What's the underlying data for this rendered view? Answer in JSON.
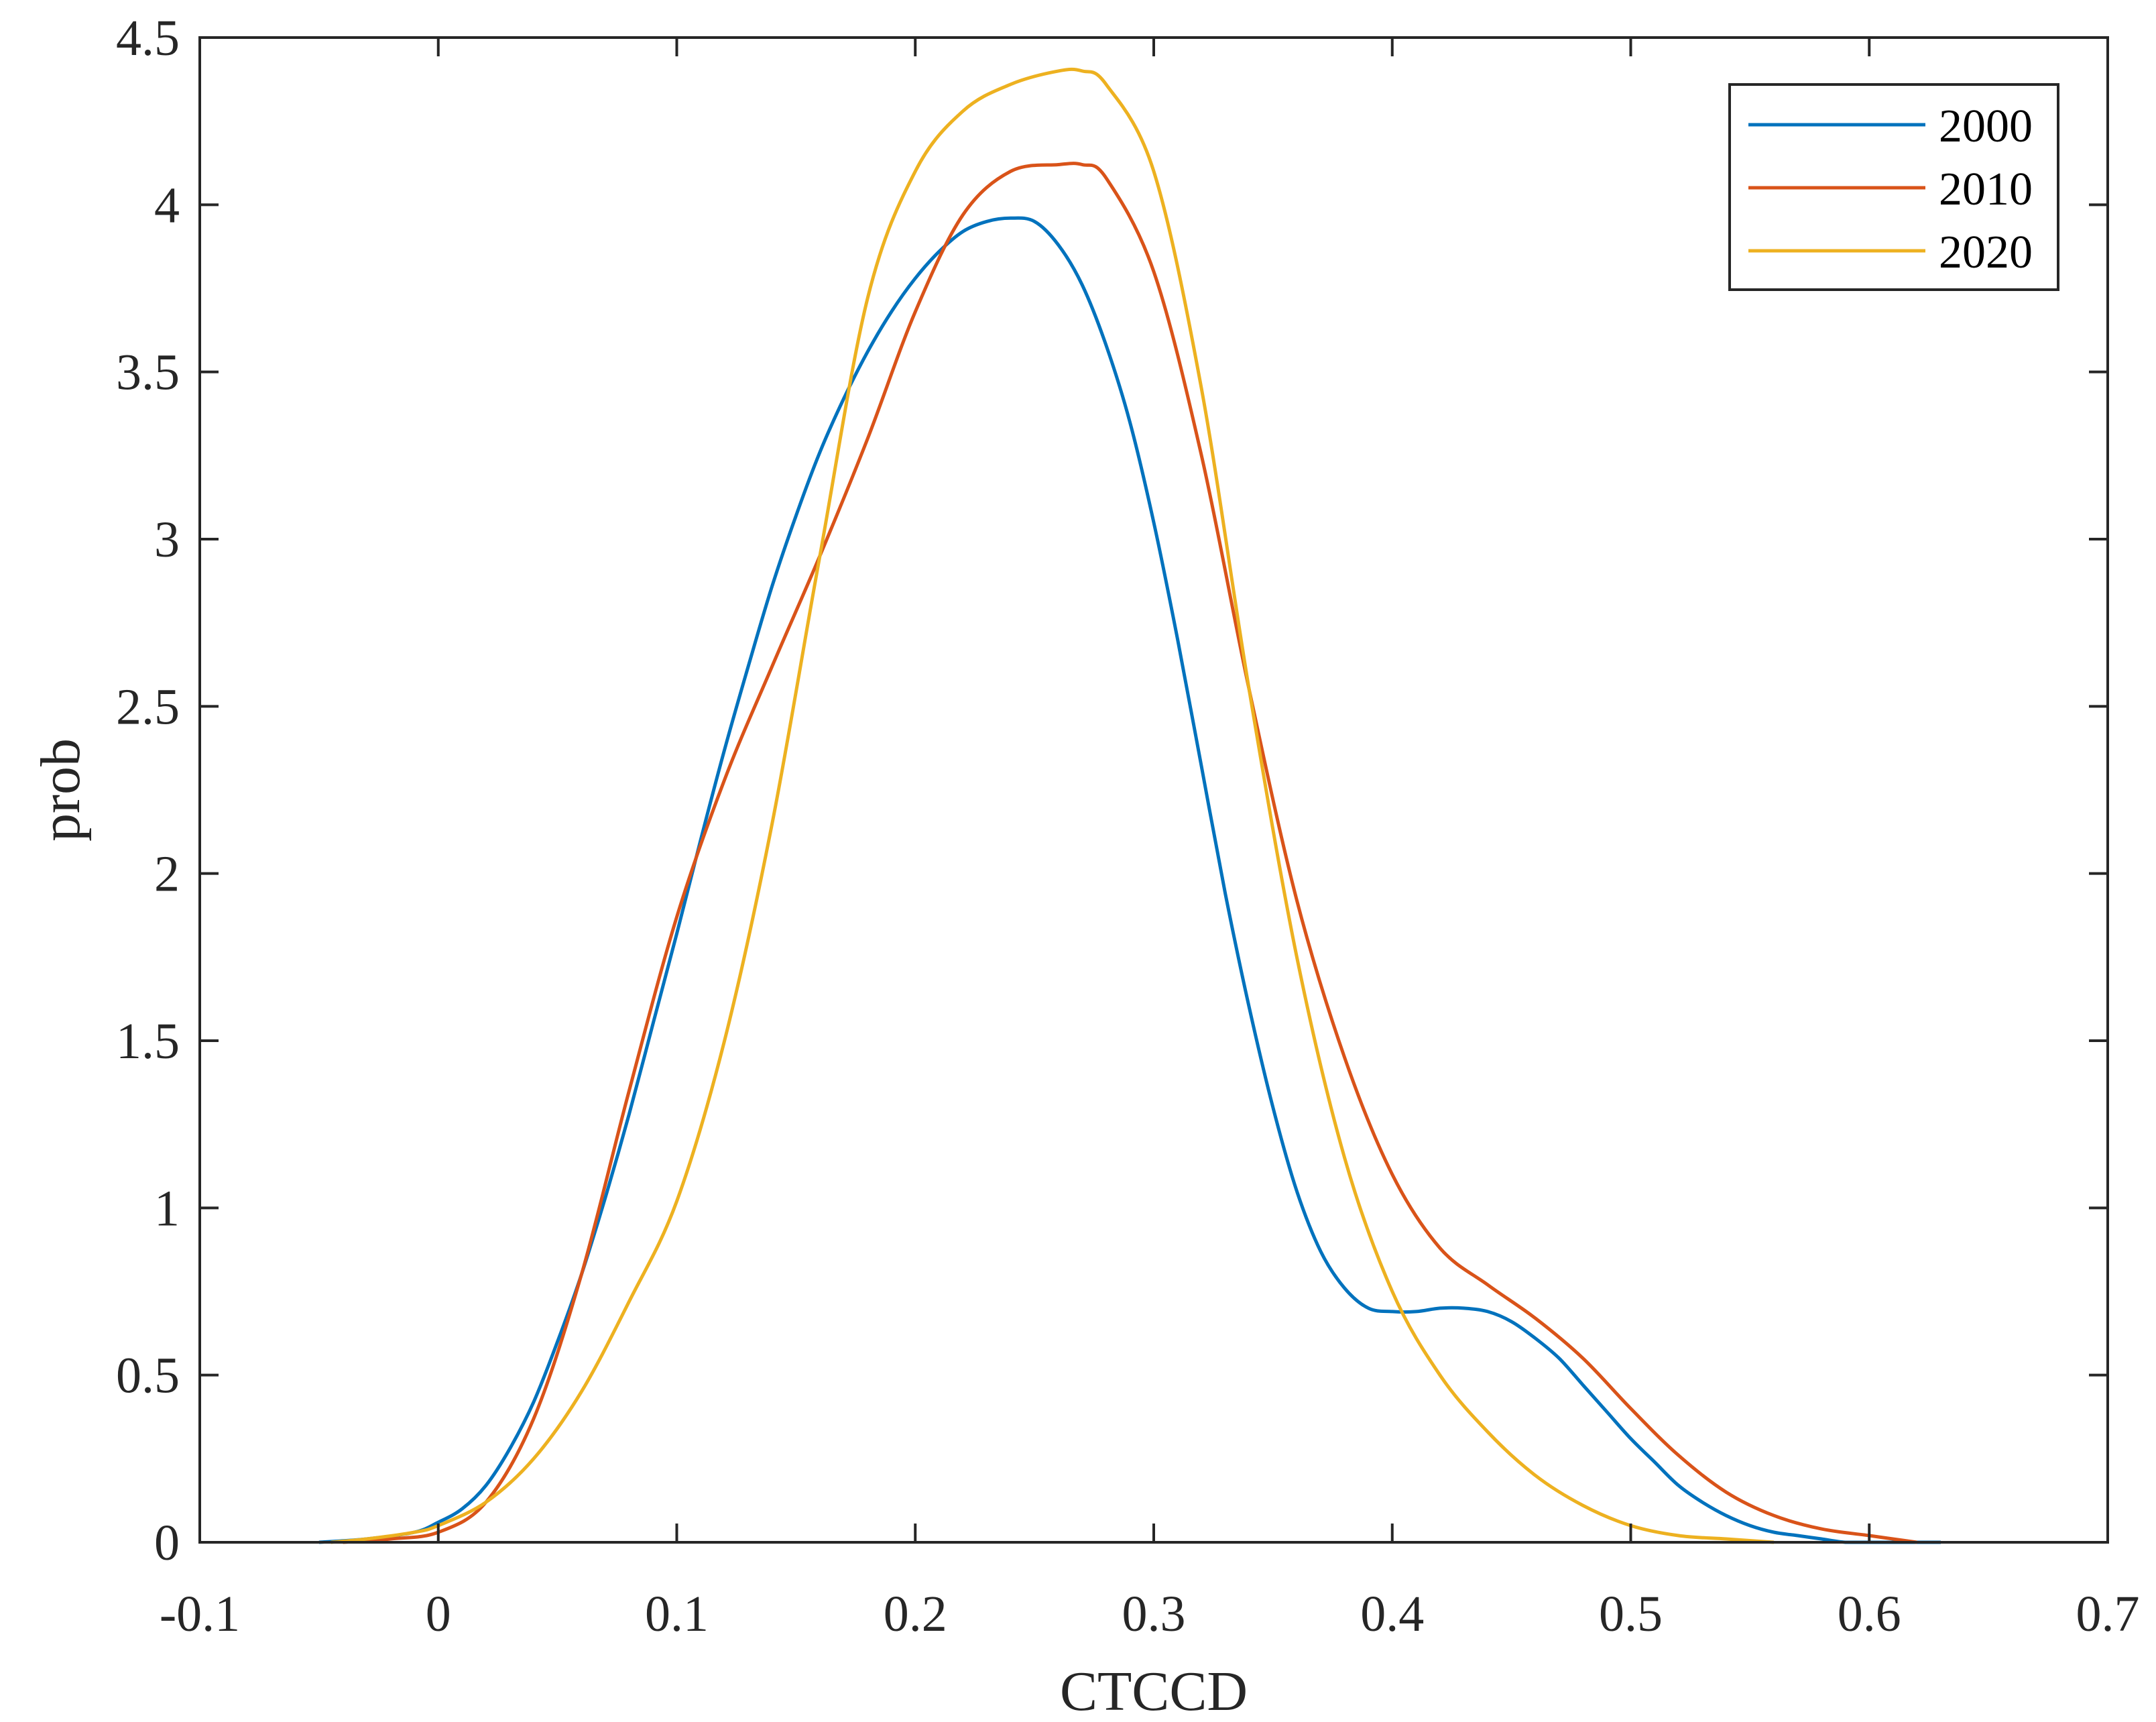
{
  "chart_data": {
    "type": "line",
    "title": "",
    "xlabel": "CTCCD",
    "ylabel": "prob",
    "xlim": [
      -0.1,
      0.7
    ],
    "ylim": [
      0,
      4.5
    ],
    "xticks": [
      -0.1,
      0,
      0.1,
      0.2,
      0.3,
      0.4,
      0.5,
      0.6,
      0.7
    ],
    "xtick_labels": [
      "-0.1",
      "0",
      "0.1",
      "0.2",
      "0.3",
      "0.4",
      "0.5",
      "0.6",
      "0.7"
    ],
    "yticks": [
      0,
      0.5,
      1,
      1.5,
      2,
      2.5,
      3,
      3.5,
      4,
      4.5
    ],
    "ytick_labels": [
      "0",
      "0.5",
      "1",
      "1.5",
      "2",
      "2.5",
      "3",
      "3.5",
      "4",
      "4.5"
    ],
    "grid": false,
    "legend_position": "top-right",
    "series": [
      {
        "name": "2000",
        "color": "#0072BD",
        "x": [
          -0.05,
          -0.03,
          -0.01,
          0.0,
          0.01,
          0.02,
          0.03,
          0.04,
          0.05,
          0.06,
          0.07,
          0.08,
          0.09,
          0.1,
          0.11,
          0.12,
          0.13,
          0.14,
          0.15,
          0.16,
          0.17,
          0.18,
          0.19,
          0.2,
          0.21,
          0.22,
          0.23,
          0.24,
          0.25,
          0.26,
          0.27,
          0.28,
          0.29,
          0.3,
          0.31,
          0.32,
          0.33,
          0.34,
          0.35,
          0.36,
          0.37,
          0.38,
          0.39,
          0.4,
          0.41,
          0.42,
          0.43,
          0.44,
          0.45,
          0.46,
          0.47,
          0.48,
          0.49,
          0.5,
          0.51,
          0.52,
          0.53,
          0.54,
          0.55,
          0.56,
          0.57,
          0.58,
          0.59,
          0.6,
          0.61,
          0.62,
          0.63
        ],
        "y": [
          0.0,
          0.01,
          0.03,
          0.06,
          0.1,
          0.17,
          0.28,
          0.42,
          0.6,
          0.8,
          1.03,
          1.28,
          1.55,
          1.82,
          2.1,
          2.37,
          2.62,
          2.86,
          3.07,
          3.26,
          3.42,
          3.56,
          3.68,
          3.78,
          3.86,
          3.92,
          3.95,
          3.96,
          3.95,
          3.88,
          3.76,
          3.58,
          3.35,
          3.05,
          2.7,
          2.32,
          1.94,
          1.6,
          1.3,
          1.05,
          0.87,
          0.76,
          0.7,
          0.69,
          0.69,
          0.7,
          0.7,
          0.69,
          0.66,
          0.61,
          0.55,
          0.47,
          0.39,
          0.31,
          0.24,
          0.17,
          0.12,
          0.08,
          0.05,
          0.03,
          0.02,
          0.01,
          0.0,
          0.0,
          0.0,
          0.0,
          0.0
        ]
      },
      {
        "name": "2010",
        "color": "#D95319",
        "x": [
          -0.04,
          -0.02,
          0.0,
          0.02,
          0.04,
          0.06,
          0.08,
          0.1,
          0.12,
          0.14,
          0.16,
          0.18,
          0.2,
          0.22,
          0.24,
          0.26,
          0.27,
          0.28,
          0.3,
          0.32,
          0.34,
          0.36,
          0.38,
          0.4,
          0.42,
          0.44,
          0.46,
          0.48,
          0.5,
          0.52,
          0.54,
          0.56,
          0.58,
          0.6,
          0.62
        ],
        "y": [
          0.0,
          0.01,
          0.03,
          0.12,
          0.37,
          0.8,
          1.35,
          1.87,
          2.28,
          2.62,
          2.95,
          3.3,
          3.68,
          3.97,
          4.1,
          4.12,
          4.12,
          4.08,
          3.8,
          3.25,
          2.55,
          1.92,
          1.45,
          1.1,
          0.88,
          0.77,
          0.67,
          0.55,
          0.4,
          0.26,
          0.15,
          0.08,
          0.04,
          0.02,
          0.0
        ]
      },
      {
        "name": "2020",
        "color": "#EDB120",
        "x": [
          -0.045,
          -0.03,
          -0.01,
          0.0,
          0.02,
          0.04,
          0.06,
          0.08,
          0.1,
          0.12,
          0.14,
          0.16,
          0.18,
          0.2,
          0.22,
          0.24,
          0.26,
          0.27,
          0.28,
          0.3,
          0.32,
          0.34,
          0.36,
          0.38,
          0.4,
          0.42,
          0.44,
          0.46,
          0.48,
          0.5,
          0.52,
          0.54,
          0.56
        ],
        "y": [
          0.0,
          0.01,
          0.03,
          0.05,
          0.12,
          0.25,
          0.45,
          0.72,
          1.02,
          1.5,
          2.15,
          2.95,
          3.72,
          4.1,
          4.28,
          4.36,
          4.4,
          4.4,
          4.36,
          4.1,
          3.45,
          2.55,
          1.75,
          1.15,
          0.75,
          0.5,
          0.33,
          0.2,
          0.11,
          0.05,
          0.02,
          0.01,
          0.0
        ]
      }
    ]
  }
}
